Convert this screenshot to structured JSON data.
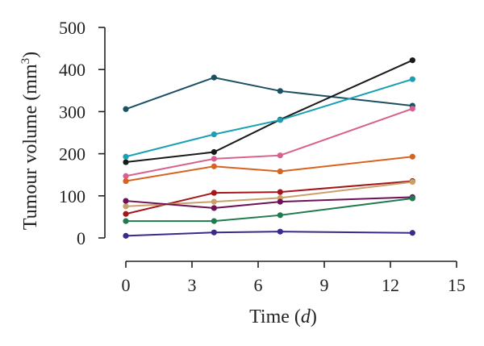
{
  "chart_data": {
    "type": "line",
    "xlabel": "Time",
    "xlabel_var": "d",
    "ylabel": "Tumour volume",
    "ylabel_unit_base": "mm",
    "ylabel_unit_exp": "3",
    "xlim": [
      0,
      15
    ],
    "ylim": [
      0,
      500
    ],
    "xticks": [
      0,
      3,
      6,
      9,
      12,
      15
    ],
    "yticks": [
      0,
      100,
      200,
      300,
      400,
      500
    ],
    "grid": false,
    "x": [
      0,
      4,
      7,
      13
    ],
    "series": [
      {
        "color": "#1b4f63",
        "values": [
          306,
          381,
          349,
          314
        ]
      },
      {
        "color": "#1a1a1a",
        "values": [
          180,
          204,
          281,
          422
        ]
      },
      {
        "color": "#1aa0b4",
        "values": [
          193,
          246,
          280,
          377
        ]
      },
      {
        "color": "#d9608e",
        "values": [
          147,
          188,
          196,
          307
        ]
      },
      {
        "color": "#d8631f",
        "values": [
          135,
          170,
          158,
          193
        ]
      },
      {
        "color": "#a5161b",
        "values": [
          57,
          107,
          109,
          135
        ]
      },
      {
        "color": "#c9a06a",
        "values": [
          75,
          86,
          95,
          133
        ]
      },
      {
        "color": "#6e1058",
        "values": [
          88,
          71,
          86,
          97
        ]
      },
      {
        "color": "#1f7a4d",
        "values": [
          40,
          40,
          54,
          94
        ]
      },
      {
        "color": "#3a2a8e",
        "values": [
          5,
          13,
          15,
          12
        ]
      }
    ]
  }
}
